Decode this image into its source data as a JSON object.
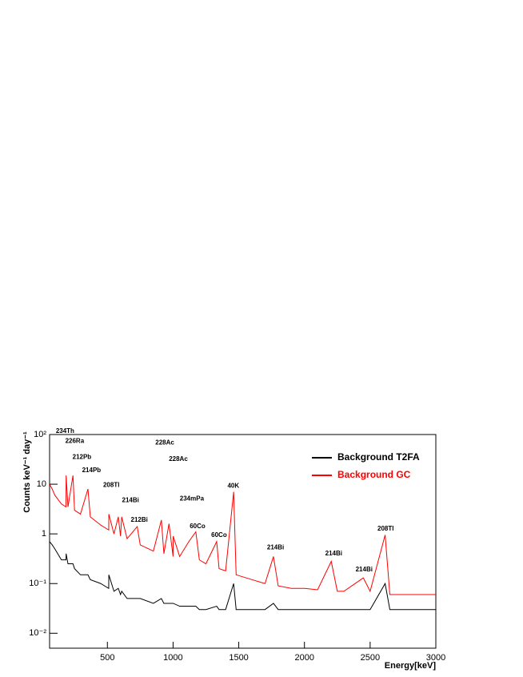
{
  "chart_data": {
    "type": "line",
    "xlabel": "Energy[keV]",
    "ylabel": "Counts keV⁻¹ day⁻¹",
    "log_y": true,
    "legend": "upper right",
    "xlim": [
      60,
      3000
    ],
    "ylim": [
      0.005,
      100
    ],
    "xticks": [
      500,
      1000,
      1500,
      2000,
      2500,
      3000
    ],
    "yticks": [
      {
        "value": 0.01,
        "label": "10⁻²"
      },
      {
        "value": 0.1,
        "label": "10⁻¹"
      },
      1,
      10,
      {
        "value": 100,
        "label": "10²"
      }
    ],
    "x": [
      60,
      80,
      100,
      150,
      185,
      186,
      200,
      238,
      250,
      295,
      352,
      370,
      450,
      510,
      511,
      550,
      583,
      600,
      609,
      650,
      727,
      750,
      850,
      911,
      930,
      969,
      1000,
      1001,
      1050,
      1120,
      1173,
      1200,
      1250,
      1332,
      1350,
      1400,
      1461,
      1480,
      1600,
      1700,
      1764,
      1800,
      1900,
      2000,
      2100,
      2204,
      2250,
      2300,
      2448,
      2500,
      2614,
      2650,
      2700,
      2800,
      2900,
      3000
    ],
    "series": [
      {
        "name": "Background T2FA",
        "color": "#000000",
        "values": [
          0.7,
          0.6,
          0.5,
          0.3,
          0.3,
          0.4,
          0.25,
          0.25,
          0.2,
          0.15,
          0.15,
          0.12,
          0.1,
          0.08,
          0.15,
          0.07,
          0.08,
          0.06,
          0.07,
          0.05,
          0.05,
          0.05,
          0.04,
          0.05,
          0.04,
          0.04,
          0.04,
          0.04,
          0.035,
          0.035,
          0.035,
          0.03,
          0.03,
          0.035,
          0.03,
          0.03,
          0.1,
          0.03,
          0.03,
          0.03,
          0.04,
          0.03,
          0.03,
          0.03,
          0.03,
          0.03,
          0.03,
          0.03,
          0.03,
          0.03,
          0.1,
          0.03,
          0.03,
          0.03,
          0.03,
          0.03
        ]
      },
      {
        "name": "Background GC",
        "color": "#ff0000",
        "values": [
          10,
          8,
          6,
          4,
          3.5,
          15,
          3.5,
          15,
          3,
          2.5,
          8,
          2.2,
          1.5,
          1.2,
          2.5,
          1,
          2.2,
          0.9,
          2.2,
          0.8,
          1.4,
          0.6,
          0.45,
          1.9,
          0.4,
          1.6,
          0.35,
          0.9,
          0.35,
          0.7,
          1.1,
          0.3,
          0.25,
          0.7,
          0.2,
          0.18,
          7,
          0.15,
          0.12,
          0.1,
          0.35,
          0.09,
          0.08,
          0.08,
          0.075,
          0.28,
          0.07,
          0.07,
          0.13,
          0.07,
          0.95,
          0.06,
          0.06,
          0.06,
          0.06,
          0.06
        ]
      }
    ],
    "annotations": [
      {
        "text": "234Th",
        "x": 178,
        "y": 117
      },
      {
        "text": "226Ra",
        "x": 251,
        "y": 73
      },
      {
        "text": "212Pb",
        "x": 306,
        "y": 35
      },
      {
        "text": "214Pb",
        "x": 379,
        "y": 19
      },
      {
        "text": "208Tl",
        "x": 530,
        "y": 9.5
      },
      {
        "text": "214Bi",
        "x": 676,
        "y": 4.7
      },
      {
        "text": "212Bi",
        "x": 743,
        "y": 1.9
      },
      {
        "text": "228Ac",
        "x": 937,
        "y": 68
      },
      {
        "text": "228Ac",
        "x": 1040,
        "y": 32
      },
      {
        "text": "234mPa",
        "x": 1143,
        "y": 5.1
      },
      {
        "text": "60Co",
        "x": 1186,
        "y": 1.4
      },
      {
        "text": "60Co",
        "x": 1350,
        "y": 0.93
      },
      {
        "text": "40K",
        "x": 1459,
        "y": 9.2
      },
      {
        "text": "214Bi",
        "x": 1780,
        "y": 0.53
      },
      {
        "text": "214Bi",
        "x": 2223,
        "y": 0.4
      },
      {
        "text": "214Bi",
        "x": 2454,
        "y": 0.19
      },
      {
        "text": "208Tl",
        "x": 2618,
        "y": 1.25
      }
    ]
  }
}
